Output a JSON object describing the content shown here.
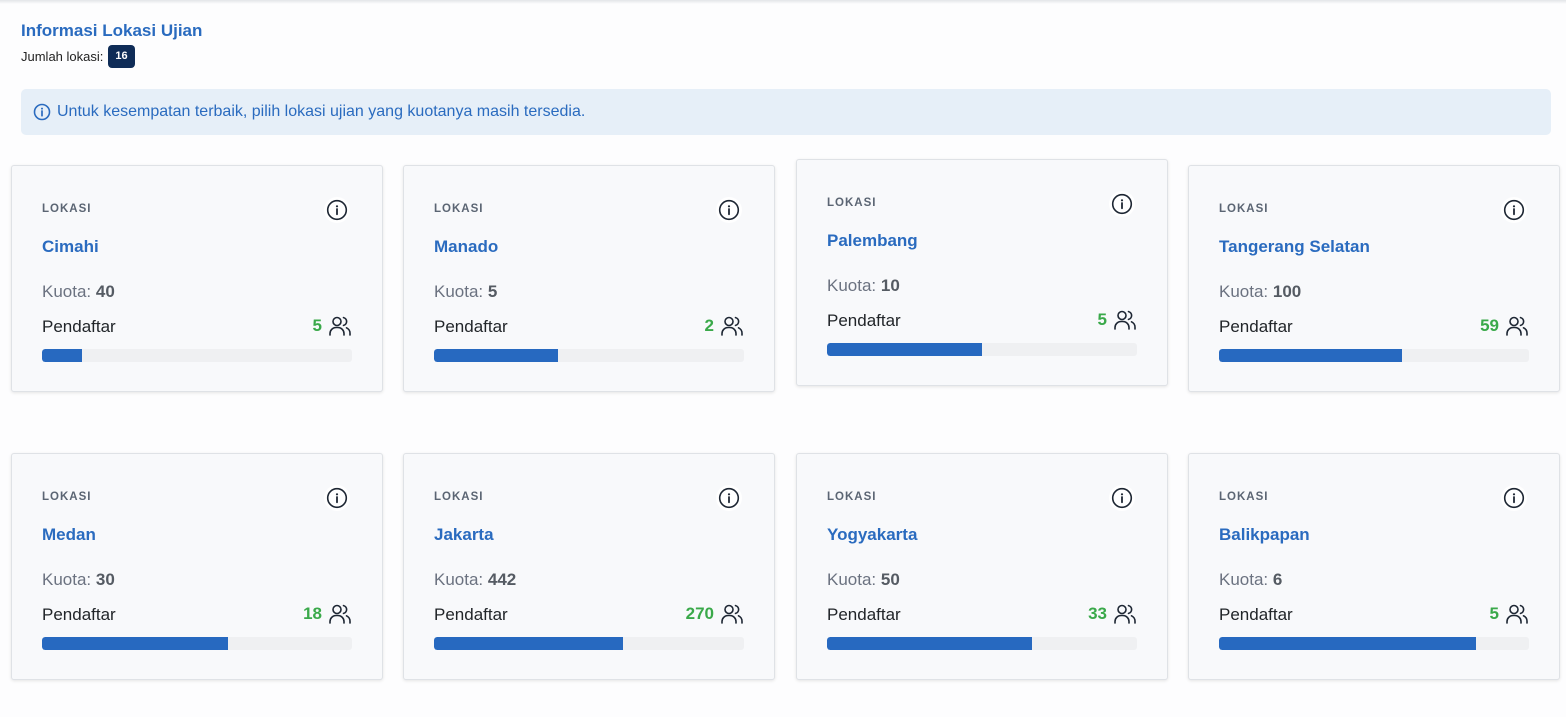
{
  "header": {
    "title": "Informasi Lokasi Ujian",
    "count_label": "Jumlah lokasi:",
    "count_value": "16"
  },
  "alert": {
    "icon": "info-circle-icon",
    "text": "Untuk kesempatan terbaik, pilih lokasi ujian yang kuotanya masih tersedia."
  },
  "labels": {
    "location": "LOKASI",
    "quota": "Kuota:",
    "registrants": "Pendaftar"
  },
  "colors": {
    "accent": "#2a6bbf",
    "registrant_count": "#3aa94a",
    "progress": "#2769c0",
    "badge": "#0f2c57"
  },
  "locations": [
    {
      "city": "Cimahi",
      "quota": "40",
      "registrants": "5",
      "progress": 0.13
    },
    {
      "city": "Manado",
      "quota": "5",
      "registrants": "2",
      "progress": 0.4
    },
    {
      "city": "Palembang",
      "quota": "10",
      "registrants": "5",
      "progress": 0.5
    },
    {
      "city": "Tangerang Selatan",
      "quota": "100",
      "registrants": "59",
      "progress": 0.59
    },
    {
      "city": "Medan",
      "quota": "30",
      "registrants": "18",
      "progress": 0.6
    },
    {
      "city": "Jakarta",
      "quota": "442",
      "registrants": "270",
      "progress": 0.61
    },
    {
      "city": "Yogyakarta",
      "quota": "50",
      "registrants": "33",
      "progress": 0.66
    },
    {
      "city": "Balikpapan",
      "quota": "6",
      "registrants": "5",
      "progress": 0.83
    }
  ]
}
